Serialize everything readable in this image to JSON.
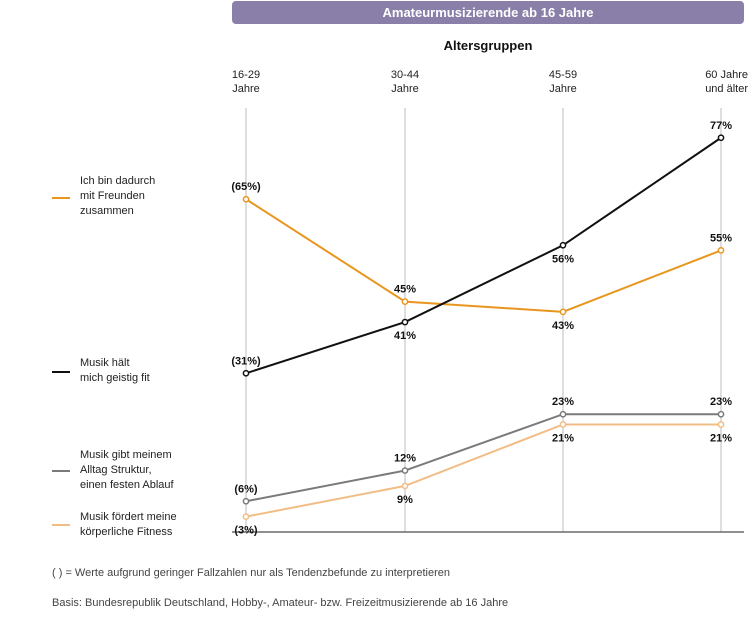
{
  "header": {
    "banner": "Amateurmusizierende ab 16 Jahre",
    "subtitle": "Altersgruppen"
  },
  "chart_data": {
    "type": "line",
    "title": "Amateurmusizierende ab 16 Jahre",
    "xlabel": "Altersgruppen",
    "ylabel": "",
    "ylim": [
      0,
      100
    ],
    "categories": [
      "16-29 Jahre",
      "30-44 Jahre",
      "45-59 Jahre",
      "60 Jahre und älter"
    ],
    "series": [
      {
        "name": "Ich bin dadurch mit Freunden zusammen",
        "color": "#e8961e",
        "values": [
          65,
          45,
          43,
          55
        ],
        "labels": [
          "(65%)",
          "45%",
          "43%",
          "55%"
        ],
        "label_pos": [
          "above",
          "above",
          "below",
          "above"
        ]
      },
      {
        "name": "Musik hält mich geistig fit",
        "color": "#111111",
        "values": [
          31,
          41,
          56,
          77
        ],
        "labels": [
          "(31%)",
          "41%",
          "56%",
          "77%"
        ],
        "label_pos": [
          "above",
          "below",
          "below",
          "above"
        ]
      },
      {
        "name": "Musik gibt meinem Alltag Struktur, einen festen Ablauf",
        "color": "#7a7a7a",
        "values": [
          6,
          12,
          23,
          23
        ],
        "labels": [
          "(6%)",
          "12%",
          "23%",
          "23%"
        ],
        "label_pos": [
          "above",
          "above",
          "above",
          "above"
        ]
      },
      {
        "name": "Musik fördert meine körperliche Fitness",
        "color": "#f2bd85",
        "values": [
          3,
          9,
          21,
          21
        ],
        "labels": [
          "(3%)",
          "9%",
          "21%",
          "21%"
        ],
        "label_pos": [
          "below",
          "below",
          "below",
          "below"
        ]
      }
    ]
  },
  "columns": [
    {
      "line1": "16-29",
      "line2": "Jahre"
    },
    {
      "line1": "30-44",
      "line2": "Jahre"
    },
    {
      "line1": "45-59",
      "line2": "Jahre"
    },
    {
      "line1": "60 Jahre",
      "line2": "und älter"
    }
  ],
  "legend": [
    {
      "text": "Ich bin dadurch\nmit Freunden\nzusammen",
      "color": "#e8961e"
    },
    {
      "text": "Musik hält\nmich geistig fit",
      "color": "#111111"
    },
    {
      "text": "Musik gibt meinem\nAlltag Struktur,\neinen festen Ablauf",
      "color": "#7a7a7a"
    },
    {
      "text": "Musik fördert meine\nkörperliche Fitness",
      "color": "#f2bd85"
    }
  ],
  "footnotes": {
    "note": "( ) = Werte aufgrund geringer Fallzahlen nur als Tendenzbefunde zu interpretieren",
    "basis": "Basis: Bundesrepublik Deutschland, Hobby-, Amateur- bzw. Freizeitmusizierende ab 16 Jahre"
  }
}
